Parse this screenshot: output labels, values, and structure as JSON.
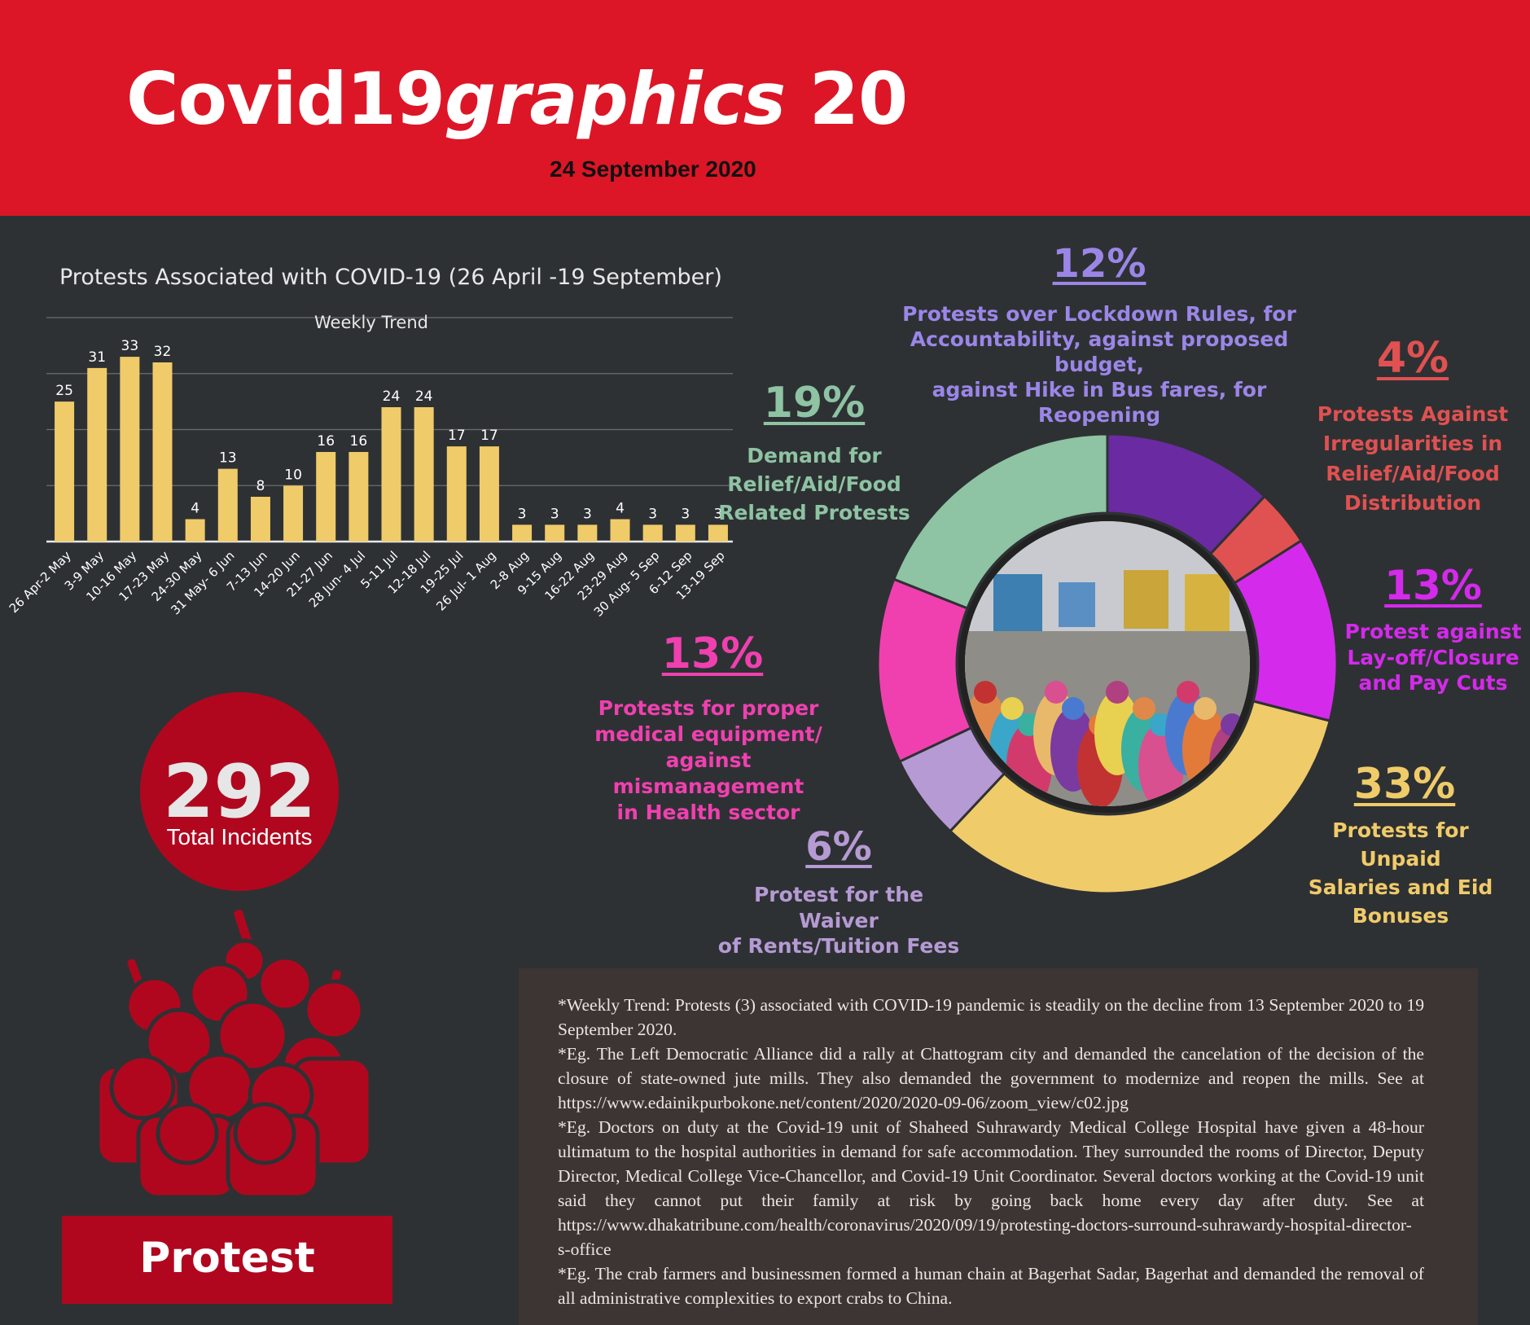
{
  "header": {
    "title_main": "Covid19",
    "title_italic": "graphics",
    "title_number": " 20",
    "date": "24 September 2020",
    "color": "#dc1626"
  },
  "bar_section": {
    "title": "Protests Associated with COVID-19 (26 April -19 September)",
    "subtitle": "Weekly Trend"
  },
  "chart_data": [
    {
      "type": "bar",
      "title": "Protests Associated with COVID-19 (26 April -19 September)",
      "subtitle": "Weekly Trend",
      "categories": [
        "26 Apr-2 May",
        "3-9 May",
        "10-16 May",
        "17-23 May",
        "24-30 May",
        "31 May- 6 Jun",
        "7-13 Jun",
        "14-20 Jun",
        "21-27 Jun",
        "28 Jun- 4 Jul",
        "5-11 Jul",
        "12-18 Jul",
        "19-25 Jul",
        "26 Jul- 1 Aug",
        "2-8 Aug",
        "9-15 Aug",
        "16-22 Aug",
        "23-29 Aug",
        "30 Aug- 5 Sep",
        "6-12 Sep",
        "13-19 Sep"
      ],
      "values": [
        25,
        31,
        33,
        32,
        4,
        13,
        8,
        10,
        16,
        16,
        24,
        24,
        17,
        17,
        3,
        3,
        3,
        4,
        3,
        3,
        3
      ],
      "ylim": [
        0,
        40
      ],
      "grid": true,
      "bar_color": "#f0cb6a"
    },
    {
      "type": "pie",
      "variant": "donut",
      "slices": [
        {
          "pct": "12%",
          "value": 12,
          "label": "Protests over Lockdown Rules, for Accountability, against proposed budget, against Hike in Bus fares, for Reopening",
          "color": "#6a2aa1",
          "label_color": "#9b86e8"
        },
        {
          "pct": "4%",
          "value": 4,
          "label": "Protests Against Irregularities in Relief/Aid/Food Distribution",
          "color": "#e05152",
          "label_color": "#e05152"
        },
        {
          "pct": "13%",
          "value": 13,
          "label": "Protest against Lay-off/Closure and Pay Cuts",
          "color": "#d42aec",
          "label_color": "#d42aec"
        },
        {
          "pct": "33%",
          "value": 33,
          "label": "Protests for Unpaid Salaries and Eid Bonuses",
          "color": "#f0cb6a",
          "label_color": "#f0cb6a"
        },
        {
          "pct": "6%",
          "value": 6,
          "label": "Protest for the Waiver of Rents/Tuition Fees",
          "color": "#b59ad4",
          "label_color": "#b59ad4"
        },
        {
          "pct": "13%",
          "value": 13,
          "label": "Protests for proper medical equipment/ against mismanagement in Health sector",
          "color": "#f040b0",
          "label_color": "#f040b0"
        },
        {
          "pct": "19%",
          "value": 19,
          "label": "Demand for Relief/Aid/Food Related Protests",
          "color": "#8ec3a4",
          "label_color": "#8ec3a4"
        }
      ]
    }
  ],
  "donut_labels": {
    "lockdown": {
      "pct": "12%",
      "lines": [
        "Protests over Lockdown Rules, for",
        "Accountability, against proposed budget,",
        "against Hike in Bus fares, for Reopening"
      ]
    },
    "irregularities": {
      "pct": "4%",
      "lines": [
        "Protests Against",
        "Irregularities in",
        "Relief/Aid/Food",
        "Distribution"
      ]
    },
    "layoff": {
      "pct": "13%",
      "lines": [
        "Protest against",
        "Lay-off/Closure",
        "and Pay Cuts"
      ]
    },
    "salaries": {
      "pct": "33%",
      "lines": [
        "Protests for Unpaid",
        "Salaries and Eid",
        "Bonuses"
      ]
    },
    "rents": {
      "pct": "6%",
      "lines": [
        "Protest for the Waiver",
        "of Rents/Tuition Fees"
      ]
    },
    "health": {
      "pct": "13%",
      "lines": [
        "Protests for proper",
        "medical equipment/",
        "against mismanagement",
        "in Health sector"
      ]
    },
    "relief": {
      "pct": "19%",
      "lines": [
        "Demand for",
        "Relief/Aid/Food",
        "Related Protests"
      ]
    }
  },
  "total": {
    "value": "292",
    "label": "Total Incidents"
  },
  "protest_label": "Protest",
  "notes": [
    "*Weekly Trend: Protests (3) associated with COVID-19 pandemic is steadily on the decline from 13 September 2020 to 19 September 2020.",
    "*Eg. The Left Democratic Alliance did a rally at Chattogram city and demanded the cancelation of the decision of the closure of state-owned jute mills. They also demanded the government to modernize and reopen the mills. See at https://www.edainikpurbokone.net/content/2020/2020-09-06/zoom_view/c02.jpg",
    "*Eg. Doctors on duty at the Covid-19 unit of Shaheed Suhrawardy Medical College Hospital have given a 48-hour ultimatum to the hospital authorities in demand for safe accommodation. They surrounded the rooms of Director, Deputy Director, Medical College Vice-Chancellor, and Covid-19 Unit Coordinator. Several doctors working at the Covid-19 unit said they cannot put their family at risk by going back home every day after duty. See at https://www.dhakatribune.com/health/coronavirus/2020/09/19/protesting-doctors-surround-suhrawardy-hospital-director-s-office",
    "*Eg. The crab farmers and businessmen formed a human chain at Bagerhat Sadar, Bagerhat and demanded the removal of all administrative complexities to export crabs to China."
  ]
}
